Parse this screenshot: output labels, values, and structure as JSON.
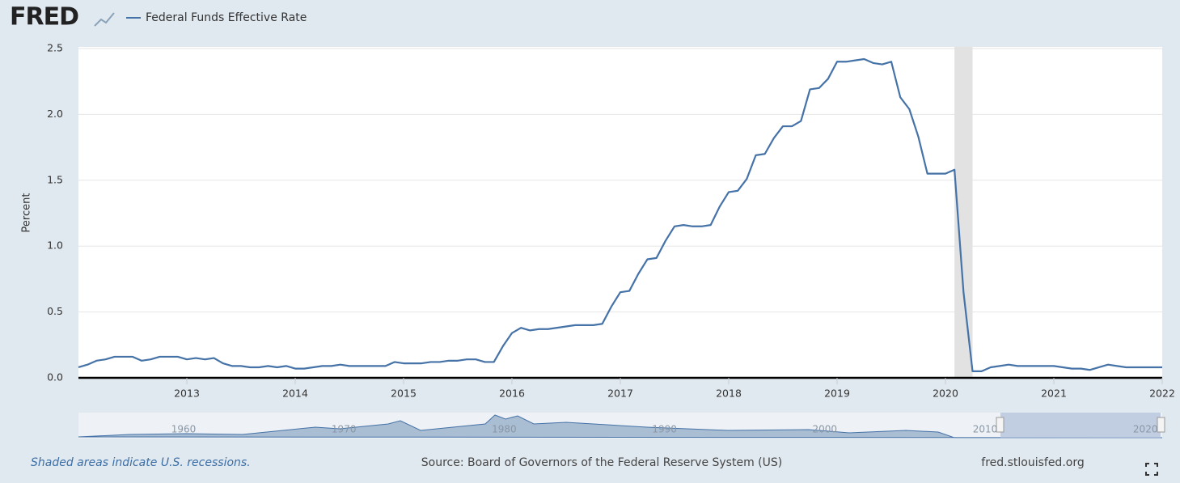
{
  "logo": "FRED",
  "footer": {
    "note": "Shaded areas indicate U.S. recessions.",
    "source": "Source: Board of Governors of the Federal Reserve System (US)",
    "site": "fred.stlouisfed.org"
  },
  "navigator_ticks": [
    "1960",
    "1970",
    "1980",
    "1990",
    "2000",
    "2010",
    "2020"
  ],
  "chart_data": {
    "type": "line",
    "ylabel": "Percent",
    "x": [
      "2012-01",
      "2012-02",
      "2012-03",
      "2012-04",
      "2012-05",
      "2012-06",
      "2012-07",
      "2012-08",
      "2012-09",
      "2012-10",
      "2012-11",
      "2012-12",
      "2013-01",
      "2013-02",
      "2013-03",
      "2013-04",
      "2013-05",
      "2013-06",
      "2013-07",
      "2013-08",
      "2013-09",
      "2013-10",
      "2013-11",
      "2013-12",
      "2014-01",
      "2014-02",
      "2014-03",
      "2014-04",
      "2014-05",
      "2014-06",
      "2014-07",
      "2014-08",
      "2014-09",
      "2014-10",
      "2014-11",
      "2014-12",
      "2015-01",
      "2015-02",
      "2015-03",
      "2015-04",
      "2015-05",
      "2015-06",
      "2015-07",
      "2015-08",
      "2015-09",
      "2015-10",
      "2015-11",
      "2015-12",
      "2016-01",
      "2016-02",
      "2016-03",
      "2016-04",
      "2016-05",
      "2016-06",
      "2016-07",
      "2016-08",
      "2016-09",
      "2016-10",
      "2016-11",
      "2016-12",
      "2017-01",
      "2017-02",
      "2017-03",
      "2017-04",
      "2017-05",
      "2017-06",
      "2017-07",
      "2017-08",
      "2017-09",
      "2017-10",
      "2017-11",
      "2017-12",
      "2018-01",
      "2018-02",
      "2018-03",
      "2018-04",
      "2018-05",
      "2018-06",
      "2018-07",
      "2018-08",
      "2018-09",
      "2018-10",
      "2018-11",
      "2018-12",
      "2019-01",
      "2019-02",
      "2019-03",
      "2019-04",
      "2019-05",
      "2019-06",
      "2019-07",
      "2019-08",
      "2019-09",
      "2019-10",
      "2019-11",
      "2019-12",
      "2020-01",
      "2020-02",
      "2020-03",
      "2020-04",
      "2020-05",
      "2020-06",
      "2020-07",
      "2020-08",
      "2020-09",
      "2020-10",
      "2020-11",
      "2020-12",
      "2021-01",
      "2021-02",
      "2021-03",
      "2021-04",
      "2021-05",
      "2021-06",
      "2021-07",
      "2021-08",
      "2021-09",
      "2021-10",
      "2021-11",
      "2021-12",
      "2022-01"
    ],
    "series": [
      {
        "name": "Federal Funds Effective Rate",
        "color": "#4572a7",
        "values": [
          0.08,
          0.1,
          0.13,
          0.14,
          0.16,
          0.16,
          0.16,
          0.13,
          0.14,
          0.16,
          0.16,
          0.16,
          0.14,
          0.15,
          0.14,
          0.15,
          0.11,
          0.09,
          0.09,
          0.08,
          0.08,
          0.09,
          0.08,
          0.09,
          0.07,
          0.07,
          0.08,
          0.09,
          0.09,
          0.1,
          0.09,
          0.09,
          0.09,
          0.09,
          0.09,
          0.12,
          0.11,
          0.11,
          0.11,
          0.12,
          0.12,
          0.13,
          0.13,
          0.14,
          0.14,
          0.12,
          0.12,
          0.24,
          0.34,
          0.38,
          0.36,
          0.37,
          0.37,
          0.38,
          0.39,
          0.4,
          0.4,
          0.4,
          0.41,
          0.54,
          0.65,
          0.66,
          0.79,
          0.9,
          0.91,
          1.04,
          1.15,
          1.16,
          1.15,
          1.15,
          1.16,
          1.3,
          1.41,
          1.42,
          1.51,
          1.69,
          1.7,
          1.82,
          1.91,
          1.91,
          1.95,
          2.19,
          2.2,
          2.27,
          2.4,
          2.4,
          2.41,
          2.42,
          2.39,
          2.38,
          2.4,
          2.13,
          2.04,
          1.83,
          1.55,
          1.55,
          1.55,
          1.58,
          0.65,
          0.05,
          0.05,
          0.08,
          0.09,
          0.1,
          0.09,
          0.09,
          0.09,
          0.09,
          0.09,
          0.08,
          0.07,
          0.07,
          0.06,
          0.08,
          0.1,
          0.09,
          0.08,
          0.08,
          0.08,
          0.08,
          0.08
        ]
      }
    ],
    "recessions": [
      {
        "start": "2020-02",
        "end": "2020-04"
      }
    ],
    "xlim": [
      "2012-01",
      "2022-01"
    ],
    "xticks": [
      2013,
      2014,
      2015,
      2016,
      2017,
      2018,
      2019,
      2020,
      2021,
      2022
    ],
    "ylim": [
      0,
      2.5
    ],
    "yticks": [
      {
        "value": 0,
        "label": "0.0"
      },
      0.5,
      {
        "value": 1,
        "label": "1.0"
      },
      1.5,
      {
        "value": 2,
        "label": "2.0"
      },
      2.5
    ],
    "grid": true
  }
}
